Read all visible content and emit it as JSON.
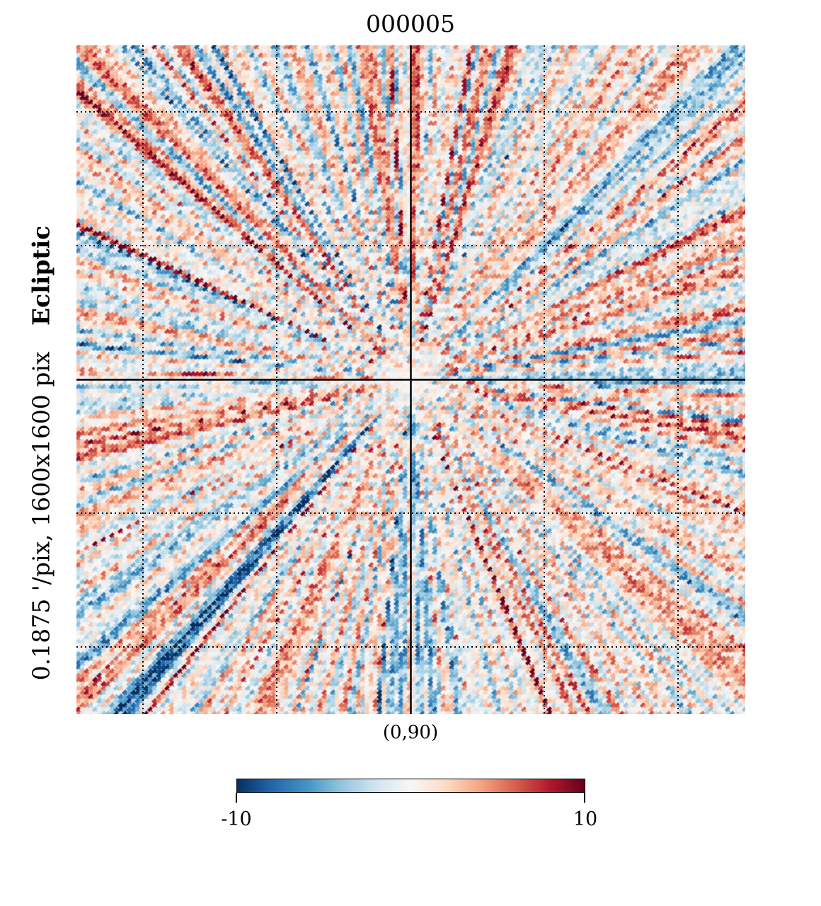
{
  "chart_data": {
    "type": "heatmap",
    "title": "000005",
    "projection": "gnomonic",
    "resolution_label": "0.1875 '/pix,",
    "size_label": "1600x1600 pix",
    "coord_system": "Ecliptic",
    "center_label": "(0,90)",
    "colormap": "RdBu_r",
    "colorbar": {
      "min": -10,
      "max": 10,
      "min_label": "-10",
      "max_label": "10",
      "stops": [
        "#053061",
        "#2166ac",
        "#4393c3",
        "#92c5de",
        "#d1e5f0",
        "#f7f7f7",
        "#fddbc7",
        "#f4a582",
        "#d6604d",
        "#b2182b",
        "#67001f"
      ]
    },
    "graticule": {
      "style": "dotted",
      "color": "#000000"
    },
    "center_cross": true
  }
}
